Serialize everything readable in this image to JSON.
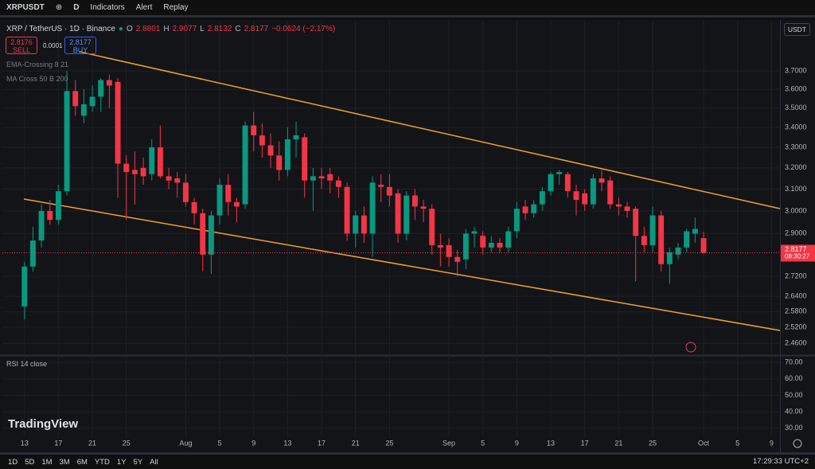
{
  "ui": {
    "toolbar": {
      "symbol": "XRPUSDT",
      "interval": "D",
      "indicators": "Indicators",
      "alert": "Alert",
      "replay": "Replay"
    },
    "header": {
      "title": "XRP / TetherUS · 1D · Binance",
      "labels": [
        "O",
        "H",
        "L",
        "C"
      ],
      "change": "−0.0624 (−2.17%)"
    },
    "trade": {
      "sell_price": 2.8176,
      "sell": "SELL",
      "spread": 0.0001,
      "buy_price": 2.8177,
      "buy": "BUY"
    },
    "indicators": [
      "EMA-Crossing 8 21",
      "MA Cross 50 B 200"
    ],
    "currency": "USDT",
    "brand": "TradingView",
    "timeframes": [
      "1D",
      "5D",
      "1M",
      "3M",
      "6M",
      "YTD",
      "1Y",
      "5Y",
      "All"
    ],
    "clock": "17:29:33 UTC+2",
    "countdown": "08:30:27"
  },
  "chart_data": [
    {
      "type": "candlestick",
      "up_color": "#089981",
      "down_color": "#f23645",
      "log_scale": true,
      "grid": true,
      "open": [
        2.6,
        2.76,
        2.87,
        3.0,
        2.96,
        3.09,
        3.59,
        3.46,
        3.51,
        3.56,
        3.65,
        3.64,
        3.22,
        3.19,
        3.2,
        3.17,
        3.3,
        3.16,
        3.15,
        3.13,
        3.04,
        2.99,
        2.81,
        2.98,
        3.12,
        3.04,
        3.03,
        3.41,
        3.36,
        3.31,
        3.26,
        3.19,
        3.34,
        3.35,
        3.14,
        3.16,
        3.17,
        3.14,
        3.11,
        2.9,
        2.98,
        2.9,
        3.12,
        3.11,
        3.08,
        2.9,
        3.07,
        3.02,
        3.01,
        2.85,
        2.85,
        2.8,
        2.79,
        2.9,
        2.89,
        2.84,
        2.86,
        2.84,
        2.91,
        3.02,
        2.99,
        3.03,
        3.09,
        3.17,
        3.17,
        3.09,
        3.08,
        3.03,
        3.15,
        3.14,
        3.03,
        3.02,
        3.01,
        2.89,
        2.85,
        2.98,
        2.77,
        2.81,
        2.84,
        2.9,
        2.8801
      ],
      "high": [
        2.78,
        2.93,
        3.03,
        3.05,
        3.12,
        3.7,
        3.65,
        3.6,
        3.62,
        3.66,
        3.68,
        3.66,
        3.26,
        3.28,
        3.25,
        3.34,
        3.41,
        3.2,
        3.18,
        3.17,
        3.06,
        3.01,
        3.0,
        3.15,
        3.17,
        3.06,
        3.43,
        3.48,
        3.42,
        3.37,
        3.33,
        3.4,
        3.43,
        3.37,
        3.2,
        3.2,
        3.2,
        3.16,
        3.13,
        3.0,
        3.02,
        3.16,
        3.17,
        3.17,
        3.1,
        3.09,
        3.1,
        3.05,
        3.03,
        2.9,
        2.88,
        2.83,
        2.92,
        2.93,
        2.91,
        2.89,
        2.88,
        2.93,
        3.04,
        3.05,
        3.05,
        3.11,
        3.18,
        3.19,
        3.18,
        3.12,
        3.1,
        3.17,
        3.19,
        3.16,
        3.06,
        3.04,
        3.02,
        2.93,
        3.02,
        3.0,
        2.84,
        2.86,
        2.92,
        2.97,
        2.9077
      ],
      "low": [
        2.55,
        2.74,
        2.84,
        2.94,
        2.94,
        3.07,
        3.46,
        3.42,
        3.48,
        3.48,
        3.5,
        3.06,
        2.96,
        3.03,
        3.12,
        3.14,
        3.15,
        3.1,
        3.06,
        3.02,
        2.94,
        2.74,
        2.73,
        2.94,
        2.98,
        2.95,
        3.01,
        3.28,
        3.25,
        3.2,
        3.14,
        3.16,
        3.25,
        3.06,
        3.0,
        3.1,
        3.08,
        3.06,
        2.87,
        2.84,
        2.86,
        2.8,
        3.04,
        3.02,
        2.86,
        2.87,
        2.96,
        2.95,
        2.81,
        2.76,
        2.76,
        2.72,
        2.75,
        2.84,
        2.81,
        2.82,
        2.82,
        2.82,
        2.88,
        2.96,
        2.97,
        3.0,
        3.07,
        3.12,
        3.06,
        2.98,
        3.0,
        3.01,
        3.09,
        3.01,
        2.98,
        2.97,
        2.7,
        2.82,
        2.82,
        2.74,
        2.69,
        2.79,
        2.82,
        2.86,
        2.8132
      ],
      "close": [
        2.76,
        2.87,
        3.0,
        2.96,
        3.09,
        3.59,
        3.51,
        3.52,
        3.56,
        3.65,
        3.62,
        3.22,
        3.18,
        3.17,
        3.16,
        3.3,
        3.16,
        3.14,
        3.13,
        3.04,
        2.99,
        2.81,
        2.98,
        3.12,
        3.04,
        3.02,
        3.41,
        3.36,
        3.31,
        3.26,
        3.19,
        3.34,
        3.36,
        3.14,
        3.16,
        3.15,
        3.14,
        3.11,
        2.9,
        2.98,
        2.9,
        3.13,
        3.11,
        3.07,
        2.9,
        3.07,
        3.02,
        3.01,
        2.85,
        2.84,
        2.8,
        2.78,
        2.9,
        2.91,
        2.84,
        2.86,
        2.84,
        2.91,
        3.01,
        2.99,
        3.03,
        3.09,
        3.17,
        3.18,
        3.09,
        3.05,
        3.03,
        3.15,
        3.13,
        3.03,
        3.02,
        3.0,
        2.89,
        2.85,
        2.98,
        2.77,
        2.82,
        2.84,
        2.91,
        2.92,
        2.8177
      ],
      "xlim": [
        -2.6,
        89
      ],
      "xticks": [
        {
          "value": 0,
          "label": "13"
        },
        {
          "value": 4,
          "label": "17"
        },
        {
          "value": 8,
          "label": "21"
        },
        {
          "value": 12,
          "label": "25"
        },
        {
          "value": 19,
          "label": "Aug"
        },
        {
          "value": 23,
          "label": "5"
        },
        {
          "value": 27,
          "label": "9"
        },
        {
          "value": 31,
          "label": "13"
        },
        {
          "value": 35,
          "label": "17"
        },
        {
          "value": 39,
          "label": "21"
        },
        {
          "value": 43,
          "label": "25"
        },
        {
          "value": 50,
          "label": "Sep"
        },
        {
          "value": 54,
          "label": "5"
        },
        {
          "value": 58,
          "label": "9"
        },
        {
          "value": 62,
          "label": "13"
        },
        {
          "value": 66,
          "label": "17"
        },
        {
          "value": 70,
          "label": "21"
        },
        {
          "value": 74,
          "label": "25"
        },
        {
          "value": 80,
          "label": "Oct"
        },
        {
          "value": 84,
          "label": "5"
        },
        {
          "value": 88,
          "label": "9"
        }
      ],
      "ylim": [
        2.42,
        3.98
      ],
      "yticks": [
        {
          "value": 3.7,
          "label": "3.7000"
        },
        {
          "value": 3.6,
          "label": "3.6000"
        },
        {
          "value": 3.5,
          "label": "3.5000"
        },
        {
          "value": 3.4,
          "label": "3.4000"
        },
        {
          "value": 3.3,
          "label": "3.3000"
        },
        {
          "value": 3.2,
          "label": "3.2000"
        },
        {
          "value": 3.1,
          "label": "3.1000"
        },
        {
          "value": 3.0,
          "label": "3.0000"
        },
        {
          "value": 2.9,
          "label": "2.9000"
        },
        {
          "value": 2.72,
          "label": "2.7200"
        },
        {
          "value": 2.64,
          "label": "2.6400"
        },
        {
          "value": 2.58,
          "label": "2.5800"
        },
        {
          "value": 2.52,
          "label": "2.5200"
        },
        {
          "value": 2.46,
          "label": "2.4600"
        }
      ]
    },
    {
      "type": "indicator-pane",
      "title": "RSI 14 close",
      "grid": true,
      "ylim": [
        25,
        74
      ],
      "yticks": [
        {
          "value": 70,
          "label": "70.00"
        },
        {
          "value": 60,
          "label": "60.00"
        },
        {
          "value": 50,
          "label": "50.00"
        },
        {
          "value": 40,
          "label": "40.00"
        },
        {
          "value": 30,
          "label": "30.00"
        }
      ]
    }
  ]
}
